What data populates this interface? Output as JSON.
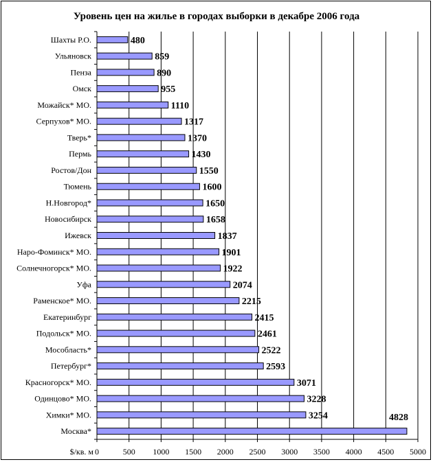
{
  "chart_data": {
    "type": "bar",
    "orientation": "horizontal",
    "title": "Уровень цен на жилье в городах выборки в декабре 2006 года",
    "xlabel": "$/кв. м",
    "ylabel": "",
    "xlim": [
      0,
      5000
    ],
    "xticks": [
      0,
      500,
      1000,
      1500,
      2000,
      2500,
      3000,
      3500,
      4000,
      4500,
      5000
    ],
    "grid": true,
    "legend": "none",
    "bar_color": "#9999ff",
    "categories": [
      "Шахты Р.О.",
      "Ульяновск",
      "Пенза",
      "Омск",
      "Можайск* МО.",
      "Серпухов* МО.",
      "Тверь*",
      "Пермь",
      "Ростов/Дон",
      "Тюмень",
      "Н.Новгород*",
      "Новосибирск",
      "Ижевск",
      "Наро-Фоминск* МО.",
      "Солнечногорск* МО.",
      "Уфа",
      "Раменское* МО.",
      "Екатеринбург",
      "Подольск* МО.",
      "Мособласть*",
      "Петербург*",
      "Красногорск* МО.",
      "Одинцово* МО.",
      "Химки* МО.",
      "Москва*"
    ],
    "values": [
      480,
      859,
      890,
      955,
      1110,
      1317,
      1370,
      1430,
      1550,
      1600,
      1650,
      1658,
      1837,
      1901,
      1922,
      2074,
      2215,
      2415,
      2461,
      2522,
      2593,
      3071,
      3228,
      3254,
      4828
    ]
  }
}
